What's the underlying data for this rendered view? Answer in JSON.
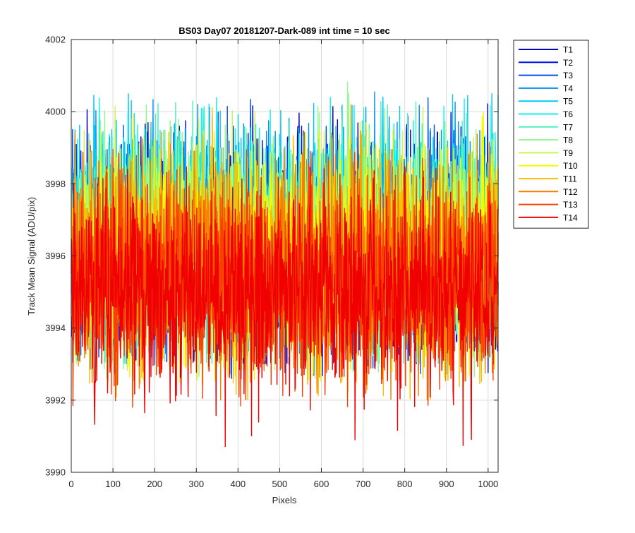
{
  "chart_data": {
    "type": "line",
    "title": "BS03 Day07 20181207-Dark-089 int time = 10 sec",
    "xlabel": "Pixels",
    "ylabel": "Track Mean Signal (ADU/pix)",
    "xlim": [
      0,
      1024
    ],
    "ylim": [
      3990,
      4002
    ],
    "xticks": [
      "0",
      "100",
      "200",
      "300",
      "400",
      "500",
      "600",
      "700",
      "800",
      "900",
      "1000"
    ],
    "yticks": [
      "3990",
      "3992",
      "3994",
      "3996",
      "3998",
      "4000",
      "4002"
    ],
    "grid": true,
    "legend_position": "outside-top-right",
    "points_per_series": 1024,
    "series": [
      {
        "name": "T1",
        "color": "#0000c8",
        "mean": 3996.2,
        "std": 1.45,
        "min_value": 3993.0,
        "max_value": 4000.3
      },
      {
        "name": "T2",
        "color": "#0010e8",
        "mean": 3996.2,
        "std": 1.45,
        "min_value": 3992.6,
        "max_value": 4000.2
      },
      {
        "name": "T3",
        "color": "#0050f0",
        "mean": 3996.3,
        "std": 1.45,
        "min_value": 3992.7,
        "max_value": 4000.4
      },
      {
        "name": "T4",
        "color": "#0090f0",
        "mean": 3996.5,
        "std": 1.45,
        "min_value": 3993.0,
        "max_value": 4000.9
      },
      {
        "name": "T5",
        "color": "#00c8f8",
        "mean": 3996.6,
        "std": 1.45,
        "min_value": 3993.2,
        "max_value": 4000.5
      },
      {
        "name": "T6",
        "color": "#10f0f0",
        "mean": 3996.6,
        "std": 1.45,
        "min_value": 3993.0,
        "max_value": 4000.4
      },
      {
        "name": "T7",
        "color": "#50f0c0",
        "mean": 3996.5,
        "std": 1.45,
        "min_value": 3993.0,
        "max_value": 4000.3
      },
      {
        "name": "T8",
        "color": "#90f890",
        "mean": 3996.4,
        "std": 1.45,
        "min_value": 3992.6,
        "max_value": 4001.2
      },
      {
        "name": "T9",
        "color": "#c8f848",
        "mean": 3996.2,
        "std": 1.45,
        "min_value": 3992.8,
        "max_value": 4000.2
      },
      {
        "name": "T10",
        "color": "#f8f800",
        "mean": 3996.0,
        "std": 1.45,
        "min_value": 3992.5,
        "max_value": 4000.0
      },
      {
        "name": "T11",
        "color": "#f8c000",
        "mean": 3995.8,
        "std": 1.45,
        "min_value": 3992.0,
        "max_value": 4001.0
      },
      {
        "name": "T12",
        "color": "#f88000",
        "mean": 3995.6,
        "std": 1.45,
        "min_value": 3992.0,
        "max_value": 3999.5
      },
      {
        "name": "T13",
        "color": "#f84000",
        "mean": 3995.3,
        "std": 1.45,
        "min_value": 3991.8,
        "max_value": 3999.0
      },
      {
        "name": "T14",
        "color": "#f00000",
        "mean": 3995.0,
        "std": 1.45,
        "min_value": 3990.7,
        "max_value": 3998.5
      }
    ]
  }
}
